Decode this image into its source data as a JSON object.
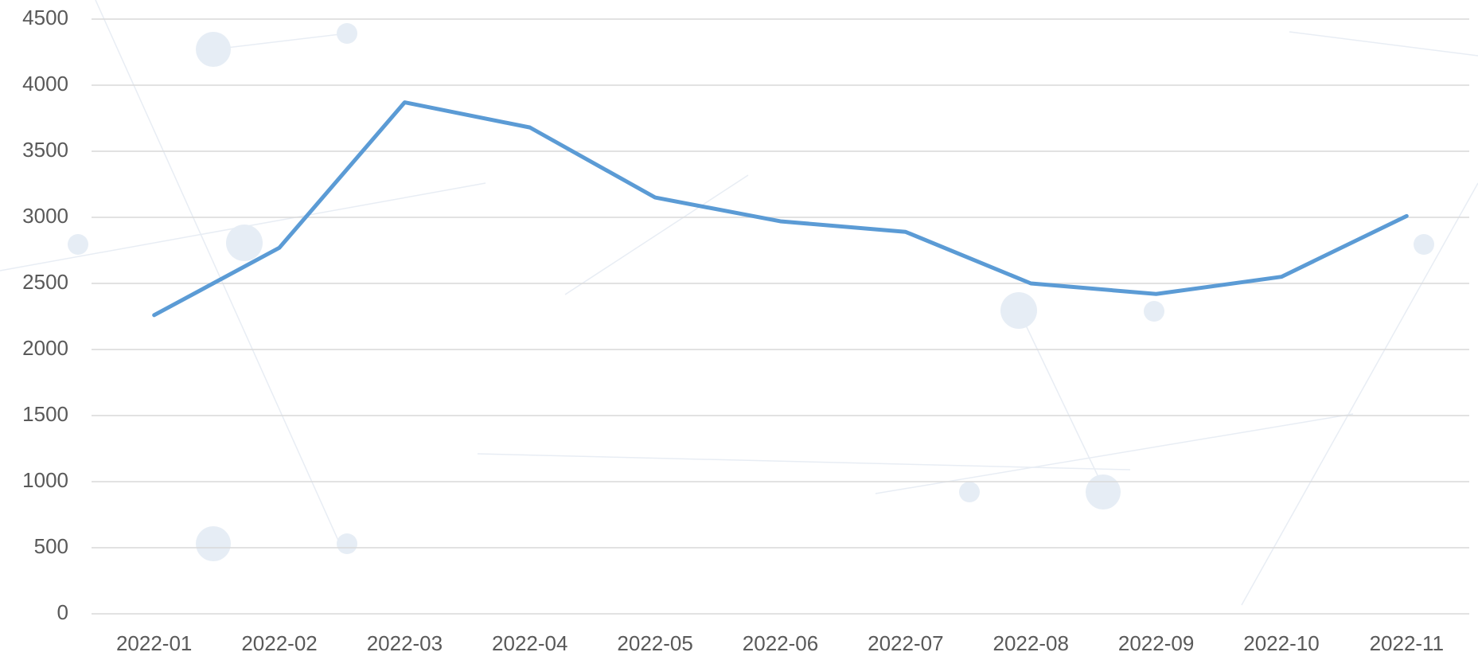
{
  "chart_data": {
    "type": "line",
    "categories": [
      "2022-01",
      "2022-02",
      "2022-03",
      "2022-04",
      "2022-05",
      "2022-06",
      "2022-07",
      "2022-08",
      "2022-09",
      "2022-10",
      "2022-11"
    ],
    "series": [
      {
        "color": "#5b9bd5",
        "values": [
          2260,
          2770,
          3870,
          3680,
          3150,
          2970,
          2890,
          2500,
          2420,
          2550,
          3010
        ]
      }
    ],
    "ylim": [
      0,
      4500
    ],
    "yticks": [
      0,
      500,
      1000,
      1500,
      2000,
      2500,
      3000,
      3500,
      4000,
      4500
    ],
    "grid": true
  }
}
